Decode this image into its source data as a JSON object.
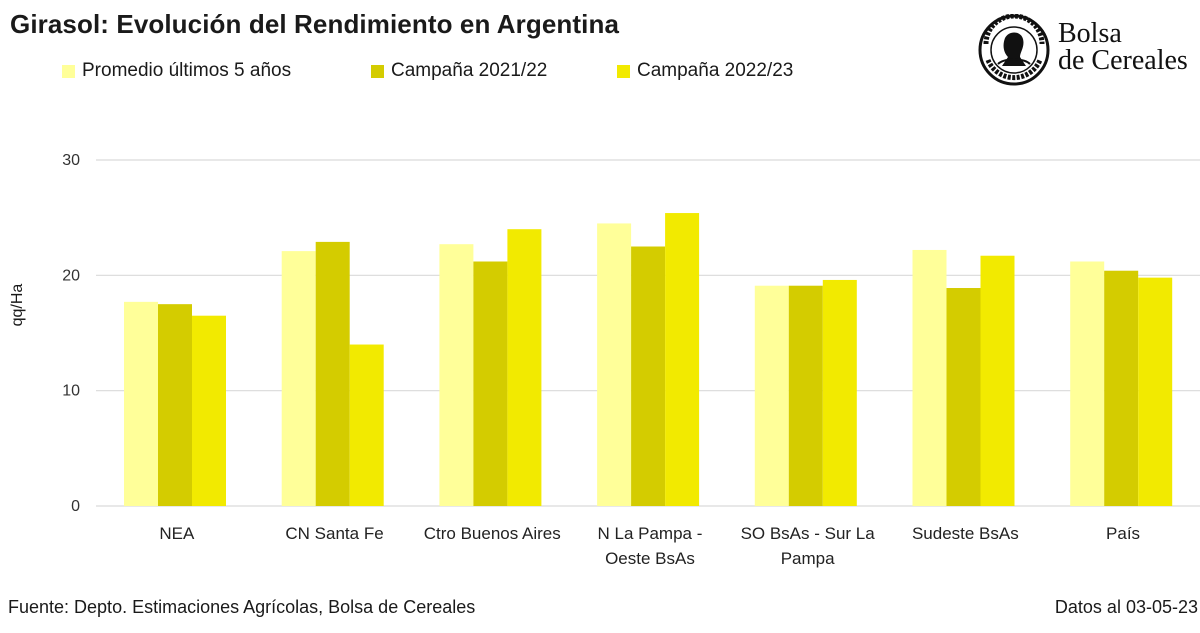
{
  "header": {
    "title": "Girasol: Evolución del Rendimiento en Argentina"
  },
  "logo": {
    "line1": "Bolsa",
    "line2": "de Cereales",
    "seal_motto": "Constantia · et · Labor",
    "seal_location": "Buenos Aires",
    "seal_year": "1854",
    "seal_icon": "goddess-seal-icon"
  },
  "footer": {
    "source": "Fuente: Depto. Estimaciones Agrícolas, Bolsa de Cereales",
    "date": "Datos al 03-05-23"
  },
  "chart_data": {
    "type": "bar",
    "ylabel": "qq/Ha",
    "ylim": [
      0,
      30
    ],
    "yticks": [
      0,
      10,
      20,
      30
    ],
    "grid": true,
    "legend_position": "top",
    "categories": [
      [
        "NEA"
      ],
      [
        "CN Santa Fe"
      ],
      [
        "Ctro Buenos Aires"
      ],
      [
        "N La Pampa -",
        "Oeste BsAs"
      ],
      [
        "SO BsAs - Sur La",
        "Pampa"
      ],
      [
        "Sudeste BsAs"
      ],
      [
        "País"
      ]
    ],
    "series": [
      {
        "name": "Promedio últimos 5 años",
        "color": "#ffff99",
        "values": [
          17.7,
          22.1,
          22.7,
          24.5,
          19.1,
          22.2,
          21.2
        ]
      },
      {
        "name": "Campaña 2021/22",
        "color": "#d4cc00",
        "values": [
          17.5,
          22.9,
          21.2,
          22.5,
          19.1,
          18.9,
          20.4
        ]
      },
      {
        "name": "Campaña 2022/23",
        "color": "#f2ea00",
        "values": [
          16.5,
          14.0,
          24.0,
          25.4,
          19.6,
          21.7,
          19.8
        ]
      }
    ]
  }
}
